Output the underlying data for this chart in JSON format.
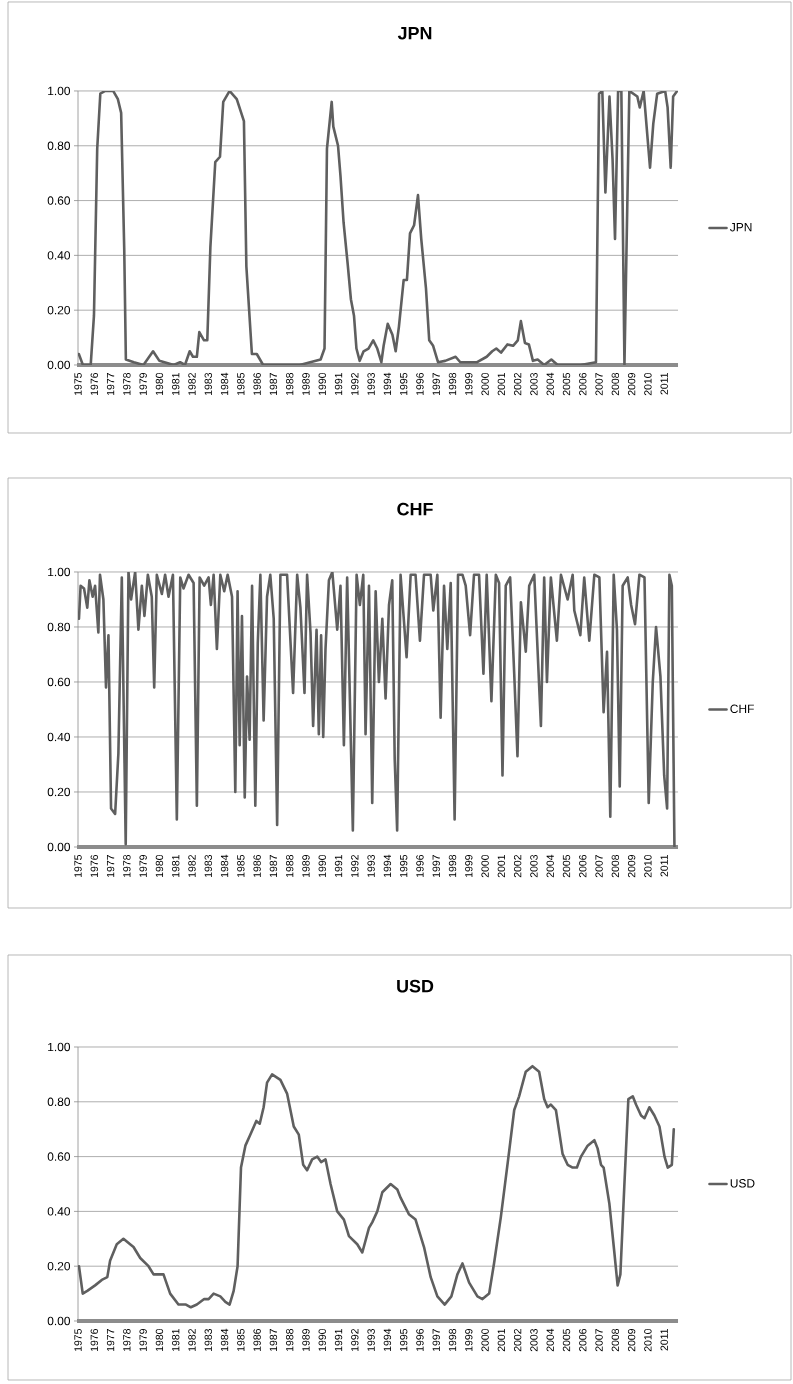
{
  "chart_data": [
    {
      "type": "line",
      "title": "JPN",
      "legend": "right",
      "grid": "y",
      "marker": "none",
      "line_style": "solid",
      "x": [
        1975.05,
        1975.3,
        1975.78,
        1975.98,
        1976.18,
        1976.37,
        1976.67,
        1977.16,
        1977.45,
        1977.65,
        1977.84,
        1977.94,
        1978.43,
        1979.02,
        1979.61,
        1980.0,
        1980.88,
        1981.27,
        1981.57,
        1981.86,
        1982.06,
        1982.3,
        1982.45,
        1982.74,
        1982.94,
        1983.13,
        1983.43,
        1983.72,
        1983.92,
        1984.31,
        1984.75,
        1985.19,
        1985.34,
        1985.68,
        1985.98,
        1986.37,
        1988.62,
        1989.9,
        1990.14,
        1990.29,
        1990.58,
        1990.68,
        1990.97,
        1991.12,
        1991.31,
        1991.56,
        1991.76,
        1991.95,
        1992.1,
        1992.3,
        1992.54,
        1992.84,
        1993.13,
        1993.38,
        1993.63,
        1993.77,
        1994.02,
        1994.31,
        1994.51,
        1994.71,
        1995.0,
        1995.2,
        1995.39,
        1995.64,
        1995.88,
        1996.08,
        1996.37,
        1996.57,
        1996.81,
        1997.11,
        1997.55,
        1998.19,
        1998.48,
        1999.51,
        2000.1,
        2000.44,
        2000.69,
        2000.98,
        2001.37,
        2001.72,
        2002.01,
        2002.2,
        2002.45,
        2002.69,
        2002.94,
        2003.23,
        2003.63,
        2004.07,
        2004.46,
        2005.88,
        2006.81,
        2007.0,
        2007.2,
        2007.39,
        2007.64,
        2007.83,
        2007.98,
        2008.17,
        2008.37,
        2008.56,
        2008.86,
        2009.35,
        2009.5,
        2009.74,
        2010.13,
        2010.33,
        2010.57,
        2011.06,
        2011.21,
        2011.4,
        2011.55,
        2011.8
      ],
      "series": [
        {
          "name": "JPN",
          "color": "#5f5f5f",
          "values": [
            0.04,
            0.0,
            0.0,
            0.18,
            0.79,
            0.99,
            1.0,
            1.0,
            0.97,
            0.92,
            0.42,
            0.02,
            0.01,
            0.0,
            0.05,
            0.015,
            0.0,
            0.01,
            0.0,
            0.05,
            0.03,
            0.03,
            0.12,
            0.09,
            0.09,
            0.43,
            0.74,
            0.76,
            0.96,
            1.0,
            0.97,
            0.89,
            0.36,
            0.04,
            0.04,
            0.0,
            0.0,
            0.02,
            0.06,
            0.79,
            0.96,
            0.87,
            0.8,
            0.69,
            0.52,
            0.37,
            0.24,
            0.18,
            0.06,
            0.015,
            0.05,
            0.06,
            0.09,
            0.06,
            0.01,
            0.07,
            0.15,
            0.11,
            0.05,
            0.14,
            0.31,
            0.31,
            0.48,
            0.51,
            0.62,
            0.46,
            0.28,
            0.09,
            0.07,
            0.01,
            0.015,
            0.03,
            0.01,
            0.01,
            0.03,
            0.05,
            0.06,
            0.045,
            0.075,
            0.07,
            0.09,
            0.16,
            0.08,
            0.075,
            0.015,
            0.02,
            0.0,
            0.02,
            0.0,
            0.0,
            0.01,
            0.99,
            1.0,
            0.63,
            0.98,
            0.75,
            0.46,
            1.0,
            1.0,
            0.0,
            1.0,
            0.98,
            0.94,
            1.0,
            0.72,
            0.88,
            0.99,
            1.0,
            0.94,
            0.72,
            0.98,
            1.0
          ]
        }
      ],
      "xlim": [
        1975,
        2011.85
      ],
      "xticks": [
        1975,
        1976,
        1977,
        1978,
        1979,
        1980,
        1981,
        1982,
        1983,
        1984,
        1985,
        1986,
        1987,
        1988,
        1989,
        1990,
        1991,
        1992,
        1993,
        1994,
        1995,
        1996,
        1997,
        1998,
        1999,
        2000,
        2001,
        2002,
        2003,
        2004,
        2005,
        2006,
        2007,
        2008,
        2009,
        2010,
        2011
      ],
      "ylim": [
        0,
        1
      ],
      "yticks": [
        {
          "value": 0,
          "label": "0.00"
        },
        {
          "value": 0.2,
          "label": "0.20"
        },
        {
          "value": 0.4,
          "label": "0.40"
        },
        {
          "value": 0.6,
          "label": "0.60"
        },
        {
          "value": 0.8,
          "label": "0.80"
        },
        {
          "value": 1,
          "label": "1.00"
        }
      ]
    },
    {
      "type": "line",
      "title": "CHF",
      "legend": "right",
      "grid": "y",
      "marker": "none",
      "line_style": "solid",
      "x": [
        1975.06,
        1975.16,
        1975.37,
        1975.57,
        1975.7,
        1975.9,
        1976.05,
        1976.25,
        1976.35,
        1976.56,
        1976.72,
        1976.87,
        1977.03,
        1977.28,
        1977.48,
        1977.69,
        1977.93,
        1978.1,
        1978.26,
        1978.51,
        1978.71,
        1978.92,
        1979.08,
        1979.29,
        1979.53,
        1979.68,
        1979.84,
        1980.15,
        1980.35,
        1980.56,
        1980.83,
        1981.07,
        1981.28,
        1981.48,
        1981.79,
        1982.1,
        1982.3,
        1982.47,
        1982.75,
        1983.02,
        1983.16,
        1983.33,
        1983.53,
        1983.74,
        1983.98,
        1984.19,
        1984.46,
        1984.66,
        1984.8,
        1984.93,
        1985.07,
        1985.24,
        1985.38,
        1985.54,
        1985.69,
        1985.89,
        1986.04,
        1986.2,
        1986.4,
        1986.61,
        1986.81,
        1987.02,
        1987.23,
        1987.43,
        1987.84,
        1988.21,
        1988.46,
        1988.66,
        1988.91,
        1989.07,
        1989.28,
        1989.44,
        1989.65,
        1989.79,
        1989.93,
        1990.06,
        1990.2,
        1990.41,
        1990.62,
        1990.92,
        1991.12,
        1991.33,
        1991.53,
        1991.88,
        1992.11,
        1992.31,
        1992.52,
        1992.66,
        1992.87,
        1993.07,
        1993.28,
        1993.48,
        1993.69,
        1993.89,
        1994.1,
        1994.3,
        1994.45,
        1994.6,
        1994.81,
        1995.18,
        1995.43,
        1995.73,
        1996.0,
        1996.25,
        1996.66,
        1996.82,
        1997.07,
        1997.27,
        1997.48,
        1997.68,
        1997.89,
        1998.13,
        1998.34,
        1998.61,
        1998.81,
        1999.08,
        1999.32,
        1999.63,
        1999.9,
        2000.1,
        2000.39,
        2000.66,
        2000.86,
        2001.07,
        2001.27,
        2001.54,
        2001.79,
        2001.99,
        2002.2,
        2002.5,
        2002.71,
        2003.02,
        2003.43,
        2003.63,
        2003.8,
        2004.04,
        2004.41,
        2004.66,
        2005.07,
        2005.38,
        2005.48,
        2005.85,
        2006.09,
        2006.4,
        2006.71,
        2007.02,
        2007.28,
        2007.49,
        2007.69,
        2007.9,
        2008.1,
        2008.27,
        2008.45,
        2008.76,
        2008.97,
        2009.21,
        2009.48,
        2009.79,
        2010.05,
        2010.3,
        2010.5,
        2010.77,
        2011.0,
        2011.18,
        2011.32,
        2011.47,
        2011.63
      ],
      "series": [
        {
          "name": "CHF",
          "color": "#5f5f5f",
          "values": [
            0.83,
            0.95,
            0.94,
            0.87,
            0.97,
            0.91,
            0.95,
            0.78,
            0.99,
            0.9,
            0.58,
            0.77,
            0.14,
            0.12,
            0.34,
            0.98,
            0.01,
            1.0,
            0.9,
            1.0,
            0.79,
            0.95,
            0.84,
            0.99,
            0.91,
            0.58,
            0.99,
            0.92,
            0.99,
            0.91,
            0.99,
            0.1,
            0.98,
            0.94,
            0.99,
            0.96,
            0.15,
            0.98,
            0.95,
            0.98,
            0.88,
            0.99,
            0.72,
            0.99,
            0.93,
            0.99,
            0.91,
            0.2,
            0.93,
            0.37,
            0.84,
            0.18,
            0.62,
            0.39,
            0.95,
            0.15,
            0.74,
            0.99,
            0.46,
            0.91,
            0.99,
            0.83,
            0.08,
            0.99,
            0.99,
            0.56,
            0.99,
            0.87,
            0.56,
            0.99,
            0.78,
            0.44,
            0.79,
            0.41,
            0.77,
            0.4,
            0.72,
            0.97,
            1.0,
            0.79,
            0.95,
            0.37,
            0.98,
            0.06,
            0.99,
            0.88,
            0.99,
            0.41,
            0.95,
            0.16,
            0.93,
            0.6,
            0.83,
            0.54,
            0.88,
            0.97,
            0.32,
            0.06,
            0.99,
            0.69,
            0.99,
            0.99,
            0.75,
            0.99,
            0.99,
            0.86,
            0.99,
            0.47,
            0.95,
            0.72,
            0.96,
            0.1,
            0.99,
            0.99,
            0.95,
            0.77,
            0.99,
            0.99,
            0.63,
            0.99,
            0.53,
            0.99,
            0.96,
            0.26,
            0.95,
            0.98,
            0.63,
            0.33,
            0.89,
            0.71,
            0.95,
            0.99,
            0.44,
            0.98,
            0.6,
            0.98,
            0.75,
            0.99,
            0.9,
            0.99,
            0.86,
            0.77,
            0.98,
            0.75,
            0.99,
            0.98,
            0.49,
            0.71,
            0.11,
            0.99,
            0.79,
            0.22,
            0.95,
            0.98,
            0.88,
            0.81,
            0.99,
            0.98,
            0.16,
            0.6,
            0.8,
            0.62,
            0.26,
            0.14,
            0.99,
            0.95,
            0.0
          ]
        }
      ],
      "xlim": [
        1975,
        2011.85
      ],
      "xticks": [
        1975,
        1976,
        1977,
        1978,
        1979,
        1980,
        1981,
        1982,
        1983,
        1984,
        1985,
        1986,
        1987,
        1988,
        1989,
        1990,
        1991,
        1992,
        1993,
        1994,
        1995,
        1996,
        1997,
        1998,
        1999,
        2000,
        2001,
        2002,
        2003,
        2004,
        2005,
        2006,
        2007,
        2008,
        2009,
        2010,
        2011
      ],
      "ylim": [
        0,
        1
      ],
      "yticks": [
        {
          "value": 0,
          "label": "0.00"
        },
        {
          "value": 0.2,
          "label": "0.20"
        },
        {
          "value": 0.4,
          "label": "0.40"
        },
        {
          "value": 0.6,
          "label": "0.60"
        },
        {
          "value": 0.8,
          "label": "0.80"
        },
        {
          "value": 1,
          "label": "1.00"
        }
      ]
    },
    {
      "type": "line",
      "title": "USD",
      "legend": "right",
      "grid": "y",
      "marker": "none",
      "line_style": "solid",
      "x": [
        1975.06,
        1975.29,
        1975.57,
        1976.05,
        1976.46,
        1976.8,
        1976.97,
        1977.38,
        1977.79,
        1978.2,
        1978.41,
        1978.82,
        1979.33,
        1979.64,
        1979.94,
        1980.25,
        1980.66,
        1981.17,
        1981.63,
        1981.93,
        1982.3,
        1982.75,
        1983.02,
        1983.33,
        1983.74,
        1984.05,
        1984.31,
        1984.56,
        1984.8,
        1985.01,
        1985.28,
        1985.58,
        1985.95,
        1986.16,
        1986.4,
        1986.61,
        1986.92,
        1987.43,
        1987.84,
        1988.25,
        1988.56,
        1988.83,
        1989.07,
        1989.38,
        1989.69,
        1989.93,
        1990.2,
        1990.51,
        1990.92,
        1991.33,
        1991.64,
        1992.15,
        1992.46,
        1992.87,
        1993.07,
        1993.38,
        1993.69,
        1994.2,
        1994.61,
        1994.81,
        1995.32,
        1995.73,
        1996.25,
        1996.66,
        1997.07,
        1997.52,
        1997.93,
        1998.3,
        1998.61,
        1999.02,
        1999.53,
        1999.84,
        2000.25,
        2000.55,
        2000.97,
        2001.48,
        2001.79,
        2002.09,
        2002.5,
        2002.91,
        2003.32,
        2003.63,
        2003.84,
        2004.04,
        2004.35,
        2004.76,
        2005.07,
        2005.38,
        2005.64,
        2005.89,
        2006.3,
        2006.71,
        2006.91,
        2007.12,
        2007.28,
        2007.63,
        2007.94,
        2008.14,
        2008.31,
        2008.55,
        2008.8,
        2009.07,
        2009.27,
        2009.58,
        2009.79,
        2010.09,
        2010.4,
        2010.71,
        2011.02,
        2011.22,
        2011.47,
        2011.59
      ],
      "series": [
        {
          "name": "USD",
          "color": "#5f5f5f",
          "values": [
            0.2,
            0.1,
            0.11,
            0.13,
            0.15,
            0.16,
            0.22,
            0.28,
            0.3,
            0.28,
            0.27,
            0.23,
            0.2,
            0.17,
            0.17,
            0.17,
            0.1,
            0.06,
            0.06,
            0.05,
            0.06,
            0.08,
            0.08,
            0.1,
            0.09,
            0.07,
            0.06,
            0.11,
            0.2,
            0.56,
            0.64,
            0.68,
            0.73,
            0.72,
            0.78,
            0.87,
            0.9,
            0.88,
            0.83,
            0.71,
            0.68,
            0.57,
            0.55,
            0.59,
            0.6,
            0.58,
            0.59,
            0.5,
            0.4,
            0.37,
            0.31,
            0.28,
            0.25,
            0.34,
            0.36,
            0.4,
            0.47,
            0.5,
            0.48,
            0.45,
            0.39,
            0.37,
            0.27,
            0.16,
            0.09,
            0.06,
            0.09,
            0.17,
            0.21,
            0.14,
            0.09,
            0.08,
            0.1,
            0.21,
            0.38,
            0.62,
            0.77,
            0.82,
            0.91,
            0.93,
            0.91,
            0.81,
            0.78,
            0.79,
            0.77,
            0.61,
            0.57,
            0.56,
            0.56,
            0.6,
            0.64,
            0.66,
            0.63,
            0.57,
            0.56,
            0.43,
            0.25,
            0.13,
            0.17,
            0.49,
            0.81,
            0.82,
            0.79,
            0.75,
            0.74,
            0.78,
            0.75,
            0.71,
            0.6,
            0.56,
            0.57,
            0.7
          ]
        }
      ],
      "xlim": [
        1975,
        2011.85
      ],
      "xticks": [
        1975,
        1976,
        1977,
        1978,
        1979,
        1980,
        1981,
        1982,
        1983,
        1984,
        1985,
        1986,
        1987,
        1988,
        1989,
        1990,
        1991,
        1992,
        1993,
        1994,
        1995,
        1996,
        1997,
        1998,
        1999,
        2000,
        2001,
        2002,
        2003,
        2004,
        2005,
        2006,
        2007,
        2008,
        2009,
        2010,
        2011
      ],
      "ylim": [
        0,
        1
      ],
      "yticks": [
        {
          "value": 0,
          "label": "0.00"
        },
        {
          "value": 0.2,
          "label": "0.20"
        },
        {
          "value": 0.4,
          "label": "0.40"
        },
        {
          "value": 0.6,
          "label": "0.60"
        },
        {
          "value": 0.8,
          "label": "0.80"
        },
        {
          "value": 1,
          "label": "1.00"
        }
      ]
    }
  ]
}
